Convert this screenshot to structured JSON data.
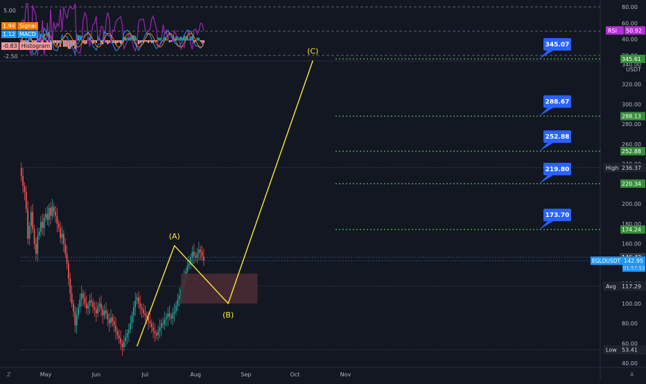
{
  "chart_data": {
    "type": "line",
    "symbol_label": "EGLDUSDT",
    "currency": "USDT",
    "price_ylim": [
      40,
      350
    ],
    "price_ticks": [
      40,
      60,
      80,
      100,
      120,
      140,
      160,
      180,
      200,
      220,
      240,
      260,
      280,
      300,
      320,
      340
    ],
    "x_ticks": [
      {
        "label": "May",
        "day": 0
      },
      {
        "label": "Jun",
        "day": 31
      },
      {
        "label": "Jul",
        "day": 61
      },
      {
        "label": "Aug",
        "day": 92
      },
      {
        "label": "Sep",
        "day": 123
      },
      {
        "label": "Oct",
        "day": 153
      },
      {
        "label": "Nov",
        "day": 184
      }
    ],
    "price_series": [
      [
        -16,
        236
      ],
      [
        -15,
        228
      ],
      [
        -14,
        218
      ],
      [
        -13,
        212
      ],
      [
        -12,
        195
      ],
      [
        -11,
        165
      ],
      [
        -10,
        178
      ],
      [
        -9,
        192
      ],
      [
        -8,
        175
      ],
      [
        -7,
        160
      ],
      [
        -6,
        150
      ],
      [
        -5,
        168
      ],
      [
        -4,
        172
      ],
      [
        -3,
        182
      ],
      [
        -2,
        176
      ],
      [
        -1,
        186
      ],
      [
        0,
        190
      ],
      [
        1,
        184
      ],
      [
        2,
        196
      ],
      [
        3,
        188
      ],
      [
        4,
        197
      ],
      [
        5,
        192
      ],
      [
        6,
        188
      ],
      [
        7,
        180
      ],
      [
        8,
        176
      ],
      [
        9,
        166
      ],
      [
        10,
        170
      ],
      [
        11,
        160
      ],
      [
        12,
        150
      ],
      [
        13,
        140
      ],
      [
        14,
        125
      ],
      [
        15,
        110
      ],
      [
        16,
        100
      ],
      [
        17,
        92
      ],
      [
        18,
        78
      ],
      [
        19,
        88
      ],
      [
        20,
        96
      ],
      [
        21,
        104
      ],
      [
        22,
        110
      ],
      [
        23,
        106
      ],
      [
        24,
        100
      ],
      [
        25,
        95
      ],
      [
        26,
        98
      ],
      [
        27,
        103
      ],
      [
        28,
        101
      ],
      [
        29,
        96
      ],
      [
        30,
        94
      ],
      [
        31,
        90
      ],
      [
        32,
        97
      ],
      [
        33,
        100
      ],
      [
        34,
        94
      ],
      [
        35,
        88
      ],
      [
        36,
        93
      ],
      [
        37,
        90
      ],
      [
        38,
        84
      ],
      [
        39,
        80
      ],
      [
        40,
        86
      ],
      [
        41,
        82
      ],
      [
        42,
        78
      ],
      [
        43,
        72
      ],
      [
        44,
        68
      ],
      [
        45,
        65
      ],
      [
        46,
        60
      ],
      [
        47,
        56
      ],
      [
        48,
        62
      ],
      [
        49,
        66
      ],
      [
        50,
        70
      ],
      [
        51,
        74
      ],
      [
        52,
        80
      ],
      [
        53,
        88
      ],
      [
        54,
        96
      ],
      [
        55,
        103
      ],
      [
        56,
        106
      ],
      [
        57,
        100
      ],
      [
        58,
        96
      ],
      [
        59,
        94
      ],
      [
        60,
        90
      ],
      [
        61,
        88
      ],
      [
        62,
        86
      ],
      [
        63,
        82
      ],
      [
        64,
        80
      ],
      [
        65,
        76
      ],
      [
        66,
        72
      ],
      [
        67,
        70
      ],
      [
        68,
        68
      ],
      [
        69,
        72
      ],
      [
        70,
        76
      ],
      [
        71,
        80
      ],
      [
        72,
        79
      ],
      [
        73,
        84
      ],
      [
        74,
        86
      ],
      [
        75,
        90
      ],
      [
        76,
        87
      ],
      [
        77,
        85
      ],
      [
        78,
        90
      ],
      [
        79,
        92
      ],
      [
        80,
        98
      ],
      [
        81,
        104
      ],
      [
        82,
        108
      ],
      [
        83,
        114
      ],
      [
        84,
        118
      ],
      [
        85,
        126
      ],
      [
        86,
        132
      ],
      [
        87,
        138
      ],
      [
        88,
        140
      ],
      [
        89,
        146
      ],
      [
        90,
        152
      ],
      [
        91,
        148
      ],
      [
        92,
        146
      ],
      [
        93,
        150
      ],
      [
        94,
        154
      ],
      [
        95,
        152
      ],
      [
        96,
        147
      ],
      [
        97,
        143
      ]
    ],
    "wave_path": [
      {
        "day": 56,
        "value": 57,
        "label": ""
      },
      {
        "day": 79,
        "value": 158,
        "label": "(A)"
      },
      {
        "day": 112,
        "value": 100,
        "label": "(B)"
      },
      {
        "day": 164,
        "value": 344,
        "label": "(C)"
      }
    ],
    "zone_box": {
      "day_start": 83,
      "day_end": 130,
      "value_low": 100,
      "value_high": 130
    },
    "targets": [
      {
        "value": 345.07,
        "label": "345.07",
        "axis_label": "345.61",
        "line_value": 345.61
      },
      {
        "value": 288.67,
        "label": "288.67",
        "axis_label": "288.13",
        "line_value": 288.13
      },
      {
        "value": 252.88,
        "label": "252.88",
        "axis_label": "252.88",
        "line_value": 252.88
      },
      {
        "value": 219.8,
        "label": "219.80",
        "axis_label": "220.34",
        "line_value": 220.34
      },
      {
        "value": 173.7,
        "label": "173.70",
        "axis_label": "174.24",
        "line_value": 174.24
      }
    ],
    "price_markers": [
      {
        "name": "High",
        "value": 236.37,
        "label": "236.37"
      },
      {
        "name": "Avg",
        "value": 117.29,
        "label": "117.29"
      },
      {
        "name": "Low",
        "value": 53.41,
        "label": "53.41"
      }
    ],
    "last_price": {
      "value": 142.95,
      "label": "142.95",
      "countdown": "01:57:53"
    },
    "prev_close": {
      "value": 146.43,
      "label": "146.43"
    },
    "indicator": {
      "rsi_ticks": [
        20,
        40,
        60,
        80
      ],
      "rsi_levels": [
        20,
        50,
        80
      ],
      "rsi_value": "50.92",
      "rsi_label": "RSI",
      "macd_ticks": [
        "5.00",
        "-2.50"
      ],
      "legend": [
        {
          "value": "1.94",
          "name": "Signal",
          "color": "#f57c00"
        },
        {
          "value": "1.12",
          "name": "MACD",
          "color": "#2196f3"
        },
        {
          "value": "-0.83",
          "name": "Histogram",
          "color": "#ef9a9a"
        }
      ]
    }
  },
  "ui": {
    "timezone_icon": "Z",
    "auto_scale_label": "A"
  },
  "colors": {
    "background": "#131722",
    "wave": "#ffeb3b",
    "target_line": "#4caf50",
    "target_label_bg": "#2962ff",
    "up_candle": "#26a69a",
    "down_candle": "#ef5350",
    "zone": "#4a2b35",
    "rsi": "#9c27b0"
  }
}
